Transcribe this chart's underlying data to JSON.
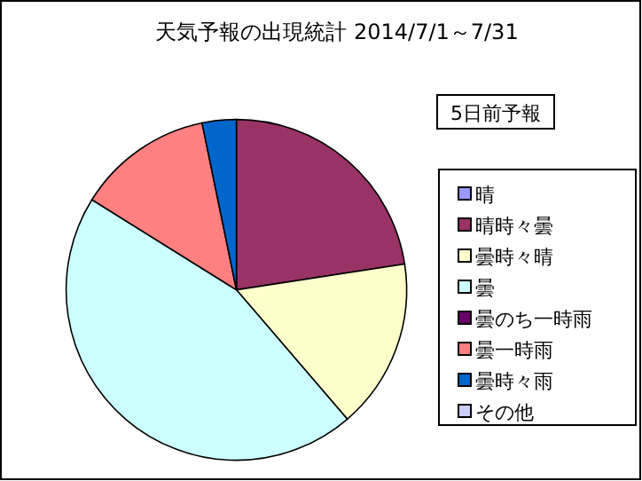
{
  "chart_data": {
    "type": "pie",
    "title": "天気予報の出現統計 2014/7/1～7/31",
    "annotations": [
      "5日前予報"
    ],
    "categories": [
      "晴",
      "晴時々曇",
      "曇時々晴",
      "曇",
      "曇のち一時雨",
      "曇一時雨",
      "曇時々雨",
      "その他"
    ],
    "values": [
      0,
      22.58,
      16.13,
      45.16,
      0,
      12.9,
      3.23,
      0
    ],
    "colors": [
      "#9999ff",
      "#993366",
      "#ffffcc",
      "#ccffff",
      "#660066",
      "#ff8080",
      "#0066cc",
      "#ccccff"
    ],
    "legend": "right"
  }
}
